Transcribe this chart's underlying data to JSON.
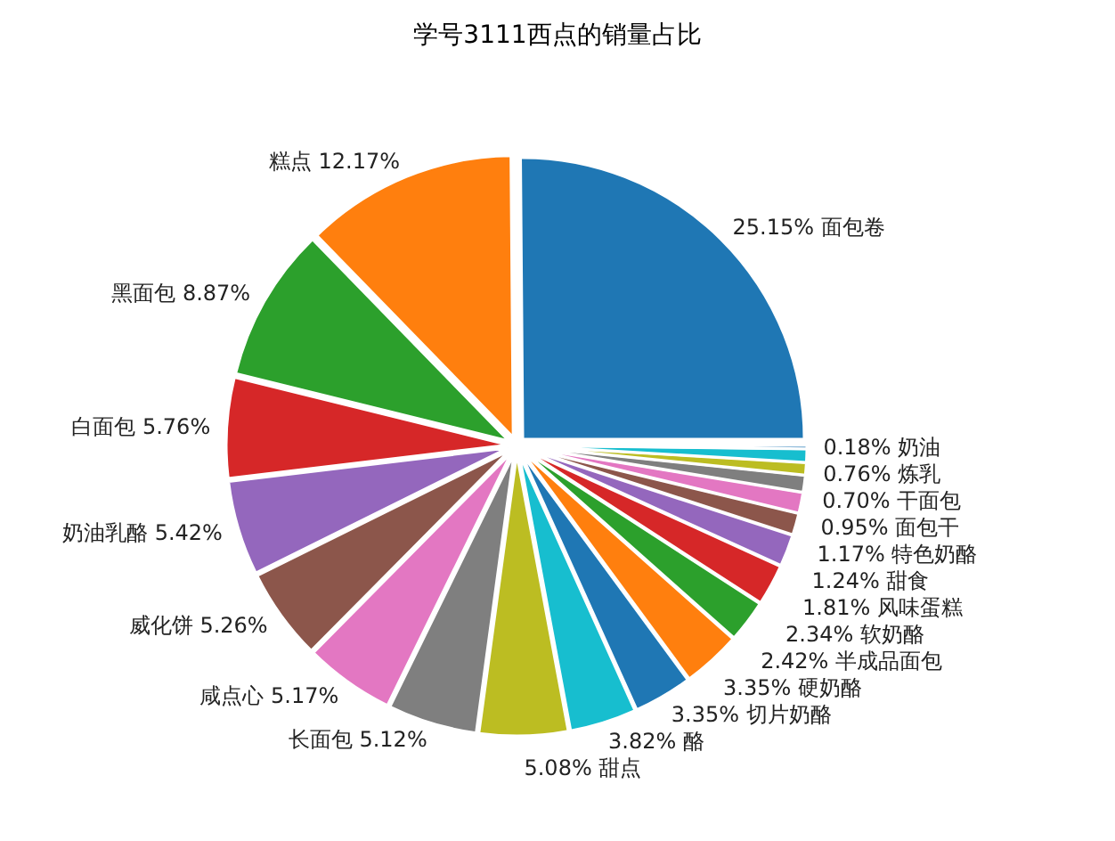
{
  "chart_data": {
    "type": "pie",
    "title": "学号3111西点的销量占比",
    "categories": [
      "面包卷",
      "糕点",
      "黑面包",
      "白面包",
      "奶油乳酪",
      "威化饼",
      "咸点心",
      "长面包",
      "甜点",
      "酪",
      "切片奶酪",
      "硬奶酪",
      "半成品面包",
      "软奶酪",
      "风味蛋糕",
      "甜食",
      "特色奶酪",
      "面包干",
      "干面包",
      "炼乳",
      "奶油"
    ],
    "values": [
      25.15,
      12.17,
      8.87,
      5.76,
      5.42,
      5.26,
      5.17,
      5.12,
      5.08,
      3.82,
      3.35,
      3.35,
      2.42,
      2.34,
      1.81,
      1.24,
      1.17,
      0.95,
      0.7,
      0.76,
      0.18
    ],
    "value_labels": [
      "25.15%",
      "12.17%",
      "8.87%",
      "5.76%",
      "5.42%",
      "5.26%",
      "5.17%",
      "5.12%",
      "5.08%",
      "3.82%",
      "3.35%",
      "3.35%",
      "2.42%",
      "2.34%",
      "1.81%",
      "1.24%",
      "1.17%",
      "0.95%",
      "0.70%",
      "0.76%",
      "0.18%"
    ],
    "colors": [
      "#1f77b4",
      "#ff7f0e",
      "#2ca02c",
      "#d62728",
      "#9467bd",
      "#8c564b",
      "#e377c2",
      "#7f7f7f",
      "#bcbd22",
      "#17becf",
      "#1f77b4",
      "#ff7f0e",
      "#2ca02c",
      "#d62728",
      "#9467bd",
      "#8c564b",
      "#e377c2",
      "#7f7f7f",
      "#bcbd22",
      "#17becf",
      "#1f77b4"
    ]
  }
}
